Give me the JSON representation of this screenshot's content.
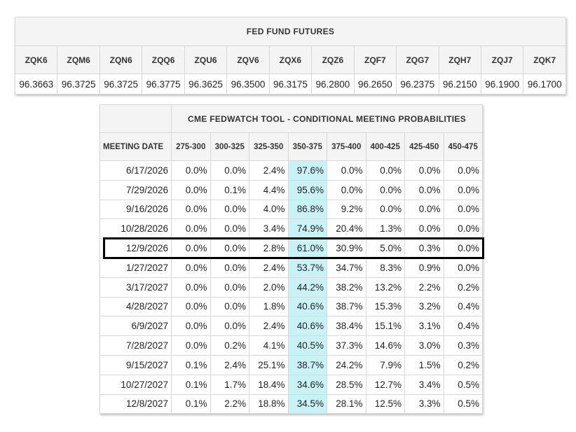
{
  "futures": {
    "title": "FED FUND FUTURES",
    "contracts": [
      "ZQK6",
      "ZQM6",
      "ZQN6",
      "ZQQ6",
      "ZQU6",
      "ZQV6",
      "ZQX6",
      "ZQZ6",
      "ZQF7",
      "ZQG7",
      "ZQH7",
      "ZQJ7",
      "ZQK7"
    ],
    "prices": [
      "96.3663",
      "96.3725",
      "96.3725",
      "96.3775",
      "96.3625",
      "96.3500",
      "96.3175",
      "96.2800",
      "96.2650",
      "96.2375",
      "96.2150",
      "96.1900",
      "96.1700"
    ]
  },
  "fedwatch": {
    "title": "CME FEDWATCH TOOL - CONDITIONAL MEETING PROBABILITIES",
    "date_header": "MEETING DATE",
    "ranges": [
      "275-300",
      "300-325",
      "325-350",
      "350-375",
      "375-400",
      "400-425",
      "425-450",
      "450-475"
    ],
    "highlight_column_index": 3,
    "highlight_color": "#c9f2f7",
    "boxed_row_index": 4,
    "rows": [
      {
        "date": "6/17/2026",
        "values": [
          "0.0%",
          "0.0%",
          "2.4%",
          "97.6%",
          "0.0%",
          "0.0%",
          "0.0%",
          "0.0%"
        ]
      },
      {
        "date": "7/29/2026",
        "values": [
          "0.0%",
          "0.1%",
          "4.4%",
          "95.6%",
          "0.0%",
          "0.0%",
          "0.0%",
          "0.0%"
        ]
      },
      {
        "date": "9/16/2026",
        "values": [
          "0.0%",
          "0.0%",
          "4.0%",
          "86.8%",
          "9.2%",
          "0.0%",
          "0.0%",
          "0.0%"
        ]
      },
      {
        "date": "10/28/2026",
        "values": [
          "0.0%",
          "0.0%",
          "3.4%",
          "74.9%",
          "20.4%",
          "1.3%",
          "0.0%",
          "0.0%"
        ]
      },
      {
        "date": "12/9/2026",
        "values": [
          "0.0%",
          "0.0%",
          "2.8%",
          "61.0%",
          "30.9%",
          "5.0%",
          "0.3%",
          "0.0%"
        ]
      },
      {
        "date": "1/27/2027",
        "values": [
          "0.0%",
          "0.0%",
          "2.4%",
          "53.7%",
          "34.7%",
          "8.3%",
          "0.9%",
          "0.0%"
        ]
      },
      {
        "date": "3/17/2027",
        "values": [
          "0.0%",
          "0.0%",
          "2.0%",
          "44.2%",
          "38.2%",
          "13.2%",
          "2.2%",
          "0.2%"
        ]
      },
      {
        "date": "4/28/2027",
        "values": [
          "0.0%",
          "0.0%",
          "1.8%",
          "40.6%",
          "38.7%",
          "15.3%",
          "3.2%",
          "0.4%"
        ]
      },
      {
        "date": "6/9/2027",
        "values": [
          "0.0%",
          "0.0%",
          "2.4%",
          "40.6%",
          "38.4%",
          "15.1%",
          "3.1%",
          "0.4%"
        ]
      },
      {
        "date": "7/28/2027",
        "values": [
          "0.0%",
          "0.2%",
          "4.1%",
          "40.5%",
          "37.3%",
          "14.6%",
          "3.0%",
          "0.3%"
        ]
      },
      {
        "date": "9/15/2027",
        "values": [
          "0.1%",
          "2.4%",
          "25.1%",
          "38.7%",
          "24.2%",
          "7.9%",
          "1.5%",
          "0.2%"
        ]
      },
      {
        "date": "10/27/2027",
        "values": [
          "0.1%",
          "1.7%",
          "18.4%",
          "34.6%",
          "28.5%",
          "12.7%",
          "3.4%",
          "0.5%"
        ]
      },
      {
        "date": "12/8/2027",
        "values": [
          "0.1%",
          "2.2%",
          "18.8%",
          "34.5%",
          "28.1%",
          "12.5%",
          "3.3%",
          "0.5%"
        ]
      }
    ]
  }
}
